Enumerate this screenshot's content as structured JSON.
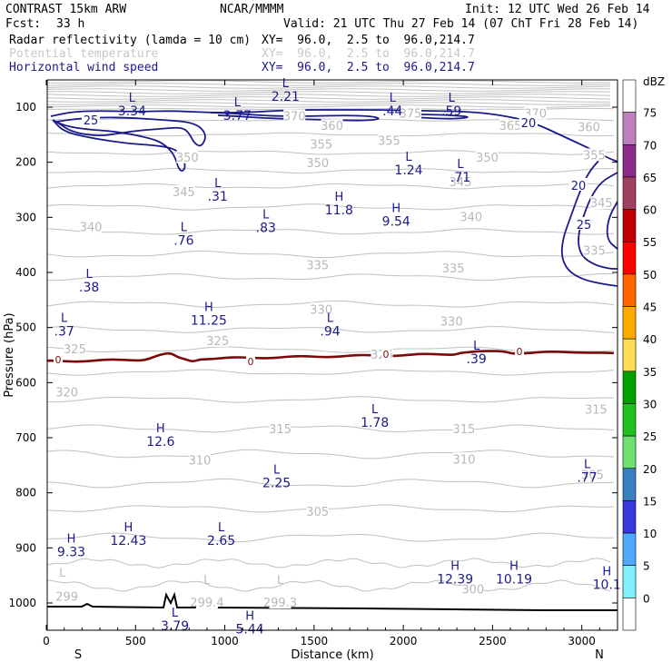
{
  "header": {
    "model": "CONTRAST 15km ARW",
    "org": "NCAR/MMMM",
    "init": "Init: 12 UTC Wed 26 Feb 14",
    "fcst_label": "Fcst:",
    "fcst_value": "33 h",
    "valid": "Valid: 21 UTC Thu 27 Feb 14 (07 ChT Fri 28 Feb 14)",
    "fields": [
      {
        "name": "Radar reflectivity (lamda = 10 cm)",
        "xy": "XY=  96.0,  2.5 to  96.0,214.7",
        "color": "#000000"
      },
      {
        "name": "Potential temperature",
        "xy": "XY=  96.0,  2.5 to  96.0,214.7",
        "color": "#c8c8c8"
      },
      {
        "name": "Horizontal wind speed",
        "xy": "XY=  96.0,  2.5 to  96.0,214.7",
        "color": "#1a1a8c"
      }
    ]
  },
  "chart_data": {
    "type": "cross-section",
    "xlabel": "Distance (km)",
    "ylabel": "Pressure (hPa)",
    "xlim": [
      0,
      3200
    ],
    "ylim": [
      1050,
      50
    ],
    "x_ticks": [
      "0",
      "500",
      "1000",
      "1500",
      "2000",
      "2500",
      "3000"
    ],
    "y_ticks": [
      "100",
      "200",
      "300",
      "400",
      "500",
      "600",
      "700",
      "800",
      "900",
      "1000"
    ],
    "end_labels": {
      "left": "S",
      "right": "N"
    },
    "colorbar": {
      "unit": "dBZ",
      "levels": [
        "75",
        "70",
        "65",
        "60",
        "55",
        "50",
        "45",
        "40",
        "35",
        "30",
        "25",
        "20",
        "15",
        "10",
        "5",
        "0"
      ],
      "colors": [
        "#ffffff",
        "#c080c0",
        "#8a2a8a",
        "#a04060",
        "#c00000",
        "#ff0000",
        "#ff6600",
        "#ffaa00",
        "#ffdd55",
        "#00a000",
        "#20c020",
        "#70e070",
        "#3a7fbf",
        "#3838dd",
        "#50a8ff",
        "#80f0ff",
        "#ffffff"
      ]
    },
    "wind_speed_contours": {
      "color": "#1a1a8c",
      "labels": [
        "25",
        "20",
        "20",
        "25"
      ]
    },
    "theta_contours": {
      "color": "#c0c0c0",
      "labels": [
        {
          "t": "370",
          "x": 1390,
          "p": 117
        },
        {
          "t": "375",
          "x": 2040,
          "p": 112
        },
        {
          "t": "370",
          "x": 2740,
          "p": 112
        },
        {
          "t": "365",
          "x": 2600,
          "p": 135
        },
        {
          "t": "360",
          "x": 3040,
          "p": 137
        },
        {
          "t": "360",
          "x": 1600,
          "p": 135
        },
        {
          "t": "355",
          "x": 1540,
          "p": 168
        },
        {
          "t": "355",
          "x": 1920,
          "p": 162
        },
        {
          "t": "355",
          "x": 3070,
          "p": 188
        },
        {
          "t": "350",
          "x": 790,
          "p": 192
        },
        {
          "t": "350",
          "x": 1520,
          "p": 202
        },
        {
          "t": "350",
          "x": 2470,
          "p": 192
        },
        {
          "t": "345",
          "x": 770,
          "p": 255
        },
        {
          "t": "345",
          "x": 2320,
          "p": 237
        },
        {
          "t": "345",
          "x": 3110,
          "p": 275
        },
        {
          "t": "340",
          "x": 250,
          "p": 318
        },
        {
          "t": "340",
          "x": 2380,
          "p": 300
        },
        {
          "t": "335",
          "x": 1520,
          "p": 388
        },
        {
          "t": "335",
          "x": 2280,
          "p": 393
        },
        {
          "t": "335",
          "x": 3070,
          "p": 361
        },
        {
          "t": "330",
          "x": 1540,
          "p": 468
        },
        {
          "t": "330",
          "x": 2270,
          "p": 490
        },
        {
          "t": "325",
          "x": 160,
          "p": 540
        },
        {
          "t": "325",
          "x": 960,
          "p": 525
        },
        {
          "t": "325",
          "x": 1880,
          "p": 550
        },
        {
          "t": "320",
          "x": 115,
          "p": 618
        },
        {
          "t": "315",
          "x": 1310,
          "p": 685
        },
        {
          "t": "315",
          "x": 2340,
          "p": 685
        },
        {
          "t": "315",
          "x": 3080,
          "p": 650
        },
        {
          "t": "310",
          "x": 860,
          "p": 742
        },
        {
          "t": "310",
          "x": 2340,
          "p": 740
        },
        {
          "t": "305",
          "x": 1520,
          "p": 835
        },
        {
          "t": "305",
          "x": 3060,
          "p": 768
        },
        {
          "t": "300",
          "x": 2390,
          "p": 976
        },
        {
          "t": "299",
          "x": 115,
          "p": 989
        },
        {
          "t": "299.4",
          "x": 900,
          "p": 1000
        },
        {
          "t": "299.3",
          "x": 1310,
          "p": 1000
        }
      ]
    },
    "zero_line": {
      "color": "#7a0a0a",
      "labels": [
        "0",
        "0",
        "0",
        "0"
      ]
    },
    "annotations": [
      {
        "kind": "H",
        "value": "11.8",
        "x": 1640,
        "p": 280
      },
      {
        "kind": "H",
        "value": "9.54",
        "x": 1960,
        "p": 300
      },
      {
        "kind": "H",
        "value": "11.25",
        "x": 910,
        "p": 480
      },
      {
        "kind": "H",
        "value": "12.6",
        "x": 640,
        "p": 700
      },
      {
        "kind": "H",
        "value": "12.43",
        "x": 460,
        "p": 880
      },
      {
        "kind": "H",
        "value": "9.33",
        "x": 140,
        "p": 900
      },
      {
        "kind": "H",
        "value": "12.39",
        "x": 2290,
        "p": 950
      },
      {
        "kind": "H",
        "value": "10.19",
        "x": 2620,
        "p": 950
      },
      {
        "kind": "H",
        "value": "5.44",
        "x": 1140,
        "p": 1040
      },
      {
        "kind": "H",
        "value": "10.1",
        "x": 3140,
        "p": 960
      },
      {
        "kind": "L",
        "value": "3.34",
        "x": 480,
        "p": 100
      },
      {
        "kind": "L",
        "value": "3.77",
        "x": 1070,
        "p": 108
      },
      {
        "kind": "L",
        "value": "2.21",
        "x": 1340,
        "p": 74
      },
      {
        "kind": "L",
        "value": ".44",
        "x": 1940,
        "p": 100
      },
      {
        "kind": "L",
        "value": ".59",
        "x": 2270,
        "p": 100
      },
      {
        "kind": "L",
        "value": "1.24",
        "x": 2030,
        "p": 207
      },
      {
        "kind": "L",
        "value": ".71",
        "x": 2320,
        "p": 220
      },
      {
        "kind": "L",
        "value": ".31",
        "x": 960,
        "p": 255
      },
      {
        "kind": "L",
        "value": ".83",
        "x": 1230,
        "p": 312
      },
      {
        "kind": "L",
        "value": ".76",
        "x": 770,
        "p": 335
      },
      {
        "kind": "L",
        "value": ".38",
        "x": 240,
        "p": 420
      },
      {
        "kind": "L",
        "value": ".37",
        "x": 100,
        "p": 500
      },
      {
        "kind": "L",
        "value": ".94",
        "x": 1590,
        "p": 500
      },
      {
        "kind": "L",
        "value": ".39",
        "x": 2410,
        "p": 550
      },
      {
        "kind": "L",
        "value": "1.78",
        "x": 1840,
        "p": 665
      },
      {
        "kind": "L",
        "value": "2.25",
        "x": 1290,
        "p": 775
      },
      {
        "kind": "L",
        "value": ".77",
        "x": 3030,
        "p": 765
      },
      {
        "kind": "L",
        "value": "2.65",
        "x": 980,
        "p": 880
      },
      {
        "kind": "L",
        "value": "3.79",
        "x": 720,
        "p": 1035
      },
      {
        "kind": "L",
        "value": "",
        "x": 90,
        "p": 962
      },
      {
        "kind": "L",
        "value": "",
        "x": 900,
        "p": 975
      },
      {
        "kind": "L",
        "value": "",
        "x": 1310,
        "p": 975
      }
    ]
  }
}
